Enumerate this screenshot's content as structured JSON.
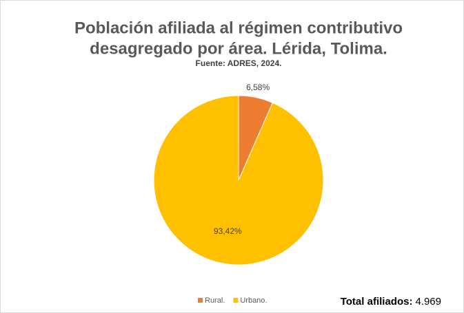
{
  "chart_data": {
    "type": "pie",
    "title": [
      "Población afiliada al régimen contributivo",
      "desagregado por área. Lérida, Tolima."
    ],
    "subtitle": "Fuente: ADRES, 2024.",
    "categories": [
      "Rural.",
      "Urbano."
    ],
    "values": [
      6.58,
      93.42
    ],
    "value_labels": [
      "6,58%",
      "93,42%"
    ],
    "colors": [
      "#ed7d31",
      "#ffc000"
    ],
    "legend": "bottom",
    "annotation": {
      "label": "Total afiliados:",
      "value": "4.969"
    }
  }
}
